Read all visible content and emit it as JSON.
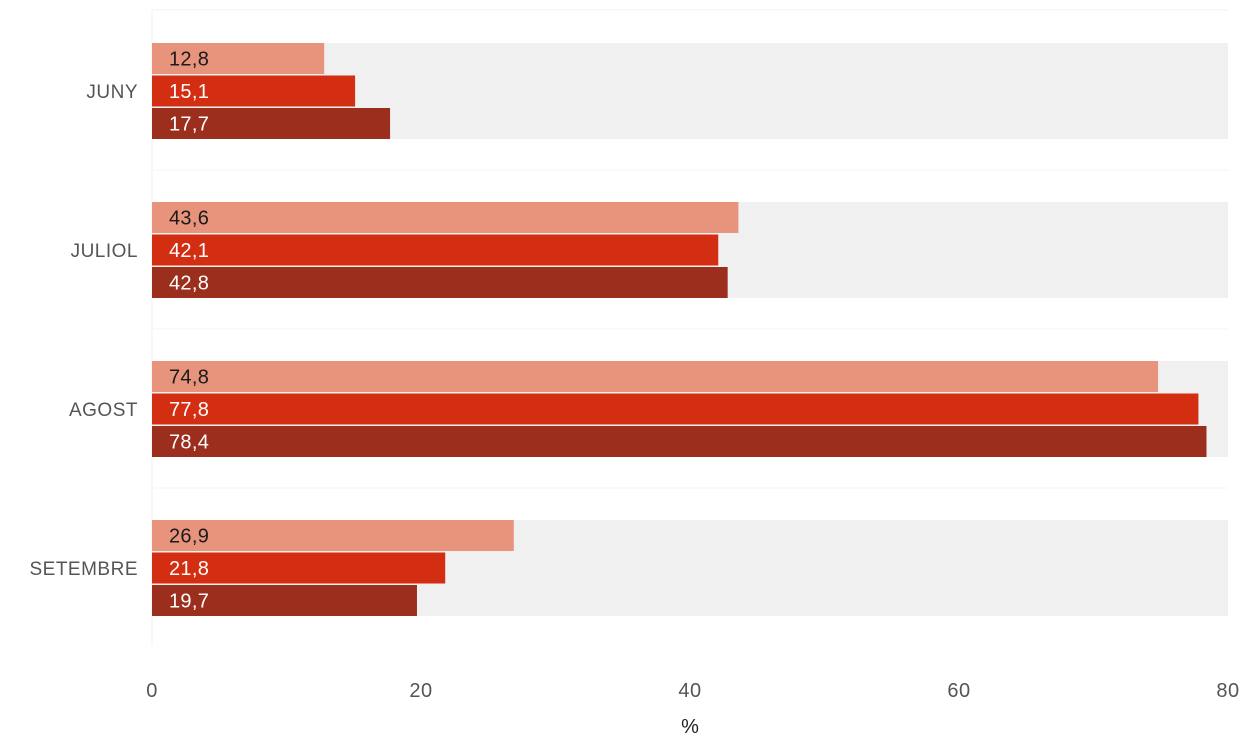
{
  "chart_data": {
    "type": "bar",
    "orientation": "horizontal",
    "categories": [
      "JUNY",
      "JULIOL",
      "AGOST",
      "SETEMBRE"
    ],
    "series": [
      {
        "values": [
          12.8,
          43.6,
          74.8,
          26.9
        ],
        "labels": [
          "12,8",
          "43,6",
          "74,8",
          "26,9"
        ],
        "color": "#e8947c",
        "label_color": "#1a1a1a"
      },
      {
        "values": [
          15.1,
          42.1,
          77.8,
          21.8
        ],
        "labels": [
          "15,1",
          "42,1",
          "77,8",
          "21,8"
        ],
        "color": "#d42e12",
        "label_color": "#ffffff"
      },
      {
        "values": [
          17.7,
          42.8,
          78.4,
          19.7
        ],
        "labels": [
          "17,7",
          "42,8",
          "78,4",
          "19,7"
        ],
        "color": "#9b2e1c",
        "label_color": "#ffffff"
      }
    ],
    "xlim": [
      0,
      80
    ],
    "xticks": [
      0,
      20,
      40,
      60,
      80
    ],
    "xtick_labels": [
      "0",
      "20",
      "40",
      "60",
      "80"
    ],
    "xlabel": "%",
    "track_color": "#f0f0f0",
    "grid": false,
    "legend": "none"
  }
}
